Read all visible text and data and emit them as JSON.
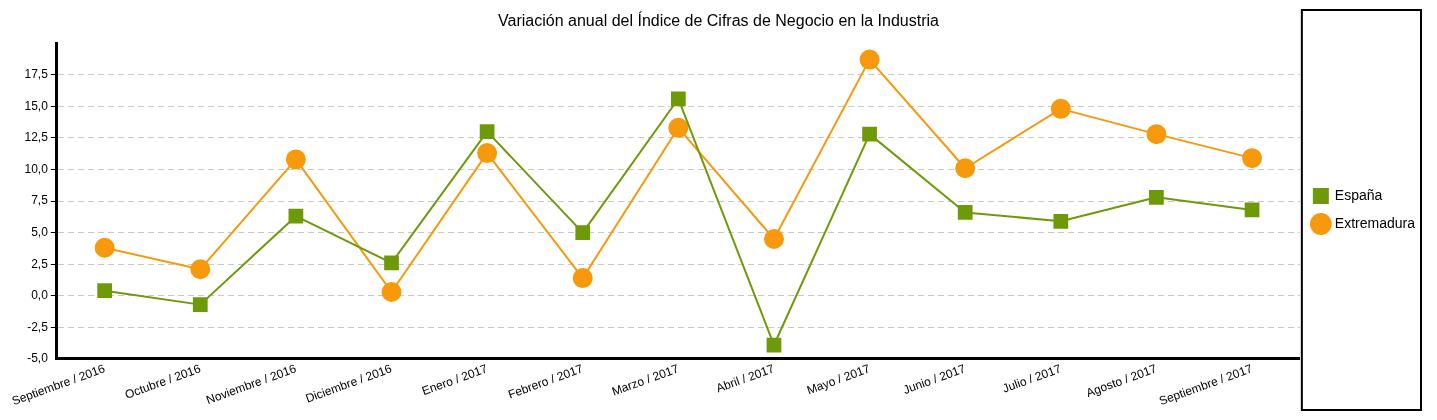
{
  "chart_data": {
    "type": "line",
    "title": "Variación anual del Índice de Cifras de Negocio en la Industria",
    "categories": [
      "Septiembre / 2016",
      "Octubre / 2016",
      "Noviembre / 2016",
      "Diciembre / 2016",
      "Enero / 2017",
      "Febrero / 2017",
      "Marzo / 2017",
      "Abril / 2017",
      "Mayo / 2017",
      "Junio / 2017",
      "Julio / 2017",
      "Agosto / 2017",
      "Septiembre / 2017"
    ],
    "series": [
      {
        "name": "España",
        "color": "#6e9a0a",
        "marker": "square",
        "values": [
          0.4,
          -0.7,
          6.3,
          2.6,
          13.0,
          5.0,
          15.6,
          -3.9,
          12.8,
          6.6,
          5.9,
          7.8,
          6.8
        ]
      },
      {
        "name": "Extremadura",
        "color": "#f7990c",
        "marker": "circle",
        "values": [
          3.8,
          2.1,
          10.8,
          0.3,
          11.3,
          1.4,
          13.3,
          4.5,
          18.7,
          10.1,
          14.8,
          12.8,
          10.9
        ]
      }
    ],
    "ylim": [
      -5,
      20
    ],
    "yticks": [
      {
        "value": -5,
        "label": "-5,0"
      },
      {
        "value": -2.5,
        "label": "-2,5"
      },
      {
        "value": 0,
        "label": "0,0"
      },
      {
        "value": 2.5,
        "label": "2,5"
      },
      {
        "value": 5,
        "label": "5,0"
      },
      {
        "value": 7.5,
        "label": "7,5"
      },
      {
        "value": 10,
        "label": "10,0"
      },
      {
        "value": 12.5,
        "label": "12,5"
      },
      {
        "value": 15,
        "label": "15,0"
      },
      {
        "value": 17.5,
        "label": "17,5"
      }
    ],
    "grid": "y",
    "legend": "right",
    "line_style": "solid"
  }
}
